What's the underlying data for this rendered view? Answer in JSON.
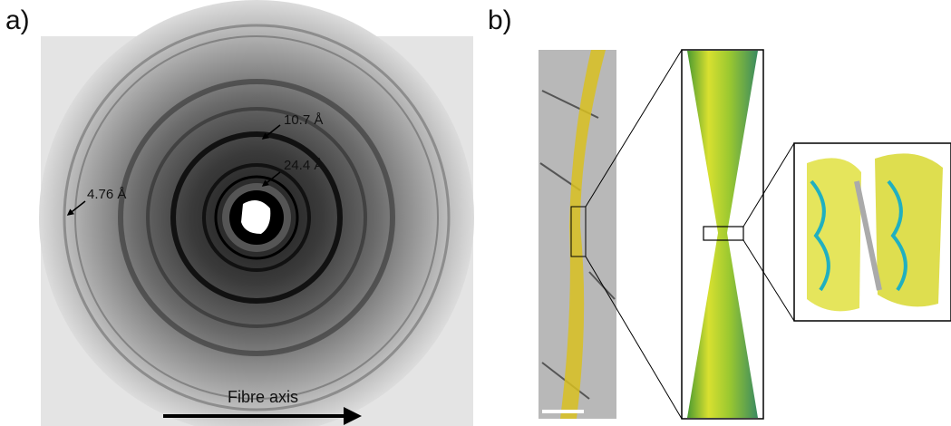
{
  "panel_a": {
    "label": "a)",
    "annotations": [
      "10.7 Å",
      "24.4 Å",
      "4.76 Å"
    ],
    "axis_label": "Fibre axis"
  },
  "panel_b": {
    "label": "b)"
  }
}
